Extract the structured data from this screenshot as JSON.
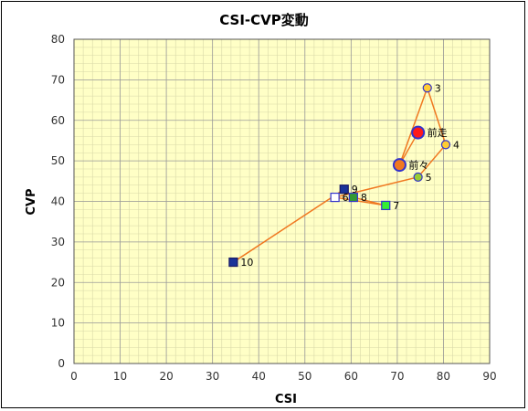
{
  "chart_data": {
    "type": "scatter",
    "title": "CSI-CVP変動",
    "xlabel": "CSI",
    "ylabel": "CVP",
    "xlim": [
      0,
      90
    ],
    "ylim": [
      0,
      80
    ],
    "xticks": [
      0,
      10,
      20,
      30,
      40,
      50,
      60,
      70,
      80,
      90
    ],
    "yticks": [
      0,
      10,
      20,
      30,
      40,
      50,
      60,
      70,
      80
    ],
    "grid": true,
    "minor_grid": true,
    "plot_background": "#ffffc6",
    "line_color": "#f07820",
    "points": [
      {
        "label": "前走",
        "x": 74.5,
        "y": 57,
        "marker": "circle",
        "size": "large",
        "fill": "#ff1a1a",
        "stroke": "#3333cc"
      },
      {
        "label": "前々",
        "x": 70.5,
        "y": 49,
        "marker": "circle",
        "size": "large",
        "fill": "#f07820",
        "stroke": "#3333cc"
      },
      {
        "label": "3",
        "x": 76.5,
        "y": 68,
        "marker": "circle",
        "size": "small",
        "fill": "#ffcc33",
        "stroke": "#3333cc"
      },
      {
        "label": "4",
        "x": 80.5,
        "y": 54,
        "marker": "circle",
        "size": "small",
        "fill": "#ffcc33",
        "stroke": "#3333cc"
      },
      {
        "label": "5",
        "x": 74.5,
        "y": 46,
        "marker": "circle",
        "size": "small",
        "fill": "#99cc33",
        "stroke": "#3333cc"
      },
      {
        "label": "6",
        "x": 56.5,
        "y": 41,
        "marker": "square",
        "size": "small",
        "fill": "#ffffff",
        "stroke": "#3333cc"
      },
      {
        "label": "7",
        "x": 67.5,
        "y": 39,
        "marker": "square",
        "size": "small",
        "fill": "#33ee33",
        "stroke": "#3333cc"
      },
      {
        "label": "8",
        "x": 60.5,
        "y": 41,
        "marker": "square",
        "size": "small",
        "fill": "#339933",
        "stroke": "#3333cc"
      },
      {
        "label": "9",
        "x": 58.5,
        "y": 43,
        "marker": "square",
        "size": "small",
        "fill": "#1a3399",
        "stroke": "#1a1a66"
      },
      {
        "label": "10",
        "x": 34.5,
        "y": 25,
        "marker": "square",
        "size": "small",
        "fill": "#1a3399",
        "stroke": "#1a1a66"
      }
    ]
  }
}
